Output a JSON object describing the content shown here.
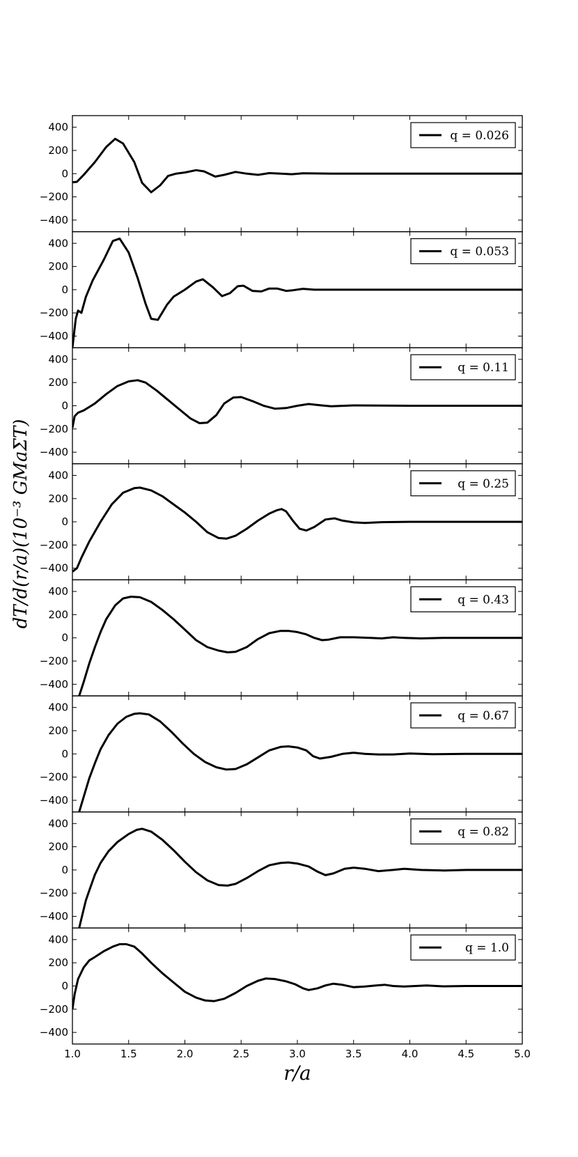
{
  "figure": {
    "xlabel": "r/a",
    "ylabel": "dT/d(r/a)(10⁻³ GMaΣT)"
  },
  "chart_data": {
    "type": "line",
    "xlim": [
      1.0,
      5.0
    ],
    "ylim": [
      -500,
      500
    ],
    "xticks": [
      "1.0",
      "1.5",
      "2.0",
      "2.5",
      "3.0",
      "3.5",
      "4.0",
      "4.5",
      "5.0"
    ],
    "yticks": [
      "400",
      "200",
      "0",
      "−200",
      "−400"
    ],
    "grid": false,
    "legend_position": "top-right",
    "series": [
      {
        "name": "q = 0.026",
        "points": [
          [
            1.0,
            -75
          ],
          [
            1.04,
            -70
          ],
          [
            1.1,
            -10
          ],
          [
            1.2,
            100
          ],
          [
            1.3,
            230
          ],
          [
            1.38,
            300
          ],
          [
            1.45,
            260
          ],
          [
            1.55,
            100
          ],
          [
            1.62,
            -80
          ],
          [
            1.7,
            -160
          ],
          [
            1.78,
            -100
          ],
          [
            1.85,
            -20
          ],
          [
            1.92,
            0
          ],
          [
            2.0,
            10
          ],
          [
            2.1,
            30
          ],
          [
            2.17,
            20
          ],
          [
            2.27,
            -25
          ],
          [
            2.35,
            -10
          ],
          [
            2.45,
            15
          ],
          [
            2.55,
            0
          ],
          [
            2.65,
            -10
          ],
          [
            2.75,
            5
          ],
          [
            2.85,
            0
          ],
          [
            2.95,
            -5
          ],
          [
            3.05,
            3
          ],
          [
            3.3,
            0
          ],
          [
            5.0,
            0
          ]
        ]
      },
      {
        "name": "q = 0.053",
        "points": [
          [
            1.0,
            -500
          ],
          [
            1.03,
            -250
          ],
          [
            1.05,
            -180
          ],
          [
            1.08,
            -200
          ],
          [
            1.12,
            -60
          ],
          [
            1.18,
            80
          ],
          [
            1.28,
            260
          ],
          [
            1.36,
            420
          ],
          [
            1.42,
            440
          ],
          [
            1.5,
            320
          ],
          [
            1.58,
            100
          ],
          [
            1.65,
            -120
          ],
          [
            1.7,
            -250
          ],
          [
            1.76,
            -260
          ],
          [
            1.84,
            -130
          ],
          [
            1.9,
            -60
          ],
          [
            2.0,
            0
          ],
          [
            2.1,
            70
          ],
          [
            2.16,
            90
          ],
          [
            2.25,
            20
          ],
          [
            2.33,
            -55
          ],
          [
            2.4,
            -30
          ],
          [
            2.47,
            30
          ],
          [
            2.52,
            35
          ],
          [
            2.6,
            -10
          ],
          [
            2.68,
            -15
          ],
          [
            2.75,
            10
          ],
          [
            2.82,
            10
          ],
          [
            2.9,
            -10
          ],
          [
            2.96,
            -5
          ],
          [
            3.05,
            8
          ],
          [
            3.15,
            0
          ],
          [
            5.0,
            0
          ]
        ]
      },
      {
        "name": "q = 0.11",
        "points": [
          [
            1.0,
            -190
          ],
          [
            1.02,
            -90
          ],
          [
            1.05,
            -60
          ],
          [
            1.1,
            -40
          ],
          [
            1.2,
            20
          ],
          [
            1.3,
            100
          ],
          [
            1.4,
            170
          ],
          [
            1.5,
            210
          ],
          [
            1.58,
            220
          ],
          [
            1.65,
            200
          ],
          [
            1.75,
            130
          ],
          [
            1.85,
            50
          ],
          [
            1.95,
            -30
          ],
          [
            2.05,
            -110
          ],
          [
            2.13,
            -150
          ],
          [
            2.2,
            -145
          ],
          [
            2.28,
            -80
          ],
          [
            2.35,
            20
          ],
          [
            2.43,
            70
          ],
          [
            2.5,
            75
          ],
          [
            2.6,
            40
          ],
          [
            2.7,
            0
          ],
          [
            2.8,
            -25
          ],
          [
            2.9,
            -20
          ],
          [
            3.0,
            0
          ],
          [
            3.1,
            15
          ],
          [
            3.2,
            5
          ],
          [
            3.3,
            -5
          ],
          [
            3.5,
            3
          ],
          [
            4.0,
            0
          ],
          [
            5.0,
            0
          ]
        ]
      },
      {
        "name": "q = 0.25",
        "points": [
          [
            1.0,
            -430
          ],
          [
            1.04,
            -400
          ],
          [
            1.08,
            -310
          ],
          [
            1.15,
            -170
          ],
          [
            1.25,
            0
          ],
          [
            1.35,
            150
          ],
          [
            1.45,
            250
          ],
          [
            1.55,
            290
          ],
          [
            1.6,
            295
          ],
          [
            1.7,
            270
          ],
          [
            1.8,
            220
          ],
          [
            1.9,
            150
          ],
          [
            2.0,
            80
          ],
          [
            2.1,
            0
          ],
          [
            2.2,
            -90
          ],
          [
            2.3,
            -140
          ],
          [
            2.37,
            -145
          ],
          [
            2.45,
            -120
          ],
          [
            2.55,
            -60
          ],
          [
            2.65,
            10
          ],
          [
            2.75,
            70
          ],
          [
            2.82,
            100
          ],
          [
            2.86,
            110
          ],
          [
            2.9,
            90
          ],
          [
            2.96,
            10
          ],
          [
            3.02,
            -60
          ],
          [
            3.08,
            -75
          ],
          [
            3.15,
            -45
          ],
          [
            3.25,
            20
          ],
          [
            3.33,
            30
          ],
          [
            3.4,
            10
          ],
          [
            3.5,
            -5
          ],
          [
            3.6,
            -10
          ],
          [
            3.75,
            -3
          ],
          [
            4.0,
            0
          ],
          [
            5.0,
            0
          ]
        ]
      },
      {
        "name": "q = 0.43",
        "points": [
          [
            1.06,
            -500
          ],
          [
            1.1,
            -380
          ],
          [
            1.15,
            -220
          ],
          [
            1.2,
            -80
          ],
          [
            1.25,
            50
          ],
          [
            1.3,
            160
          ],
          [
            1.38,
            280
          ],
          [
            1.45,
            340
          ],
          [
            1.52,
            355
          ],
          [
            1.6,
            350
          ],
          [
            1.7,
            310
          ],
          [
            1.8,
            240
          ],
          [
            1.9,
            160
          ],
          [
            2.0,
            70
          ],
          [
            2.1,
            -20
          ],
          [
            2.2,
            -80
          ],
          [
            2.3,
            -110
          ],
          [
            2.38,
            -125
          ],
          [
            2.45,
            -120
          ],
          [
            2.55,
            -80
          ],
          [
            2.65,
            -10
          ],
          [
            2.75,
            40
          ],
          [
            2.85,
            60
          ],
          [
            2.92,
            60
          ],
          [
            3.0,
            50
          ],
          [
            3.08,
            30
          ],
          [
            3.15,
            0
          ],
          [
            3.22,
            -20
          ],
          [
            3.28,
            -15
          ],
          [
            3.38,
            5
          ],
          [
            3.5,
            5
          ],
          [
            3.65,
            0
          ],
          [
            3.75,
            -5
          ],
          [
            3.85,
            5
          ],
          [
            3.95,
            0
          ],
          [
            4.1,
            -5
          ],
          [
            4.3,
            0
          ],
          [
            5.0,
            0
          ]
        ]
      },
      {
        "name": "q = 0.67",
        "points": [
          [
            1.06,
            -500
          ],
          [
            1.1,
            -370
          ],
          [
            1.15,
            -210
          ],
          [
            1.2,
            -80
          ],
          [
            1.25,
            40
          ],
          [
            1.32,
            160
          ],
          [
            1.4,
            260
          ],
          [
            1.48,
            320
          ],
          [
            1.55,
            345
          ],
          [
            1.6,
            350
          ],
          [
            1.68,
            340
          ],
          [
            1.78,
            280
          ],
          [
            1.88,
            190
          ],
          [
            1.98,
            90
          ],
          [
            2.08,
            0
          ],
          [
            2.18,
            -70
          ],
          [
            2.28,
            -115
          ],
          [
            2.37,
            -135
          ],
          [
            2.45,
            -130
          ],
          [
            2.55,
            -90
          ],
          [
            2.65,
            -30
          ],
          [
            2.75,
            30
          ],
          [
            2.85,
            60
          ],
          [
            2.92,
            65
          ],
          [
            3.0,
            55
          ],
          [
            3.08,
            30
          ],
          [
            3.14,
            -20
          ],
          [
            3.2,
            -40
          ],
          [
            3.3,
            -25
          ],
          [
            3.4,
            0
          ],
          [
            3.5,
            10
          ],
          [
            3.6,
            0
          ],
          [
            3.72,
            -5
          ],
          [
            3.85,
            -5
          ],
          [
            4.0,
            3
          ],
          [
            4.2,
            -3
          ],
          [
            4.5,
            0
          ],
          [
            5.0,
            0
          ]
        ]
      },
      {
        "name": "q = 0.82",
        "points": [
          [
            1.06,
            -500
          ],
          [
            1.08,
            -420
          ],
          [
            1.12,
            -260
          ],
          [
            1.16,
            -150
          ],
          [
            1.2,
            -40
          ],
          [
            1.25,
            60
          ],
          [
            1.32,
            160
          ],
          [
            1.4,
            240
          ],
          [
            1.5,
            310
          ],
          [
            1.57,
            345
          ],
          [
            1.62,
            355
          ],
          [
            1.7,
            330
          ],
          [
            1.8,
            260
          ],
          [
            1.9,
            170
          ],
          [
            2.0,
            70
          ],
          [
            2.1,
            -20
          ],
          [
            2.2,
            -90
          ],
          [
            2.3,
            -130
          ],
          [
            2.38,
            -135
          ],
          [
            2.45,
            -120
          ],
          [
            2.55,
            -70
          ],
          [
            2.65,
            -10
          ],
          [
            2.75,
            40
          ],
          [
            2.85,
            60
          ],
          [
            2.92,
            65
          ],
          [
            3.0,
            55
          ],
          [
            3.1,
            30
          ],
          [
            3.18,
            -15
          ],
          [
            3.25,
            -45
          ],
          [
            3.32,
            -30
          ],
          [
            3.42,
            10
          ],
          [
            3.5,
            20
          ],
          [
            3.6,
            10
          ],
          [
            3.72,
            -10
          ],
          [
            3.85,
            0
          ],
          [
            3.95,
            10
          ],
          [
            4.1,
            0
          ],
          [
            4.3,
            -5
          ],
          [
            4.5,
            0
          ],
          [
            5.0,
            0
          ]
        ]
      },
      {
        "name": "q = 1.0",
        "points": [
          [
            1.0,
            -200
          ],
          [
            1.02,
            -70
          ],
          [
            1.05,
            60
          ],
          [
            1.1,
            160
          ],
          [
            1.15,
            220
          ],
          [
            1.2,
            250
          ],
          [
            1.28,
            300
          ],
          [
            1.36,
            340
          ],
          [
            1.42,
            360
          ],
          [
            1.48,
            360
          ],
          [
            1.55,
            340
          ],
          [
            1.62,
            280
          ],
          [
            1.7,
            200
          ],
          [
            1.8,
            110
          ],
          [
            1.9,
            30
          ],
          [
            2.0,
            -50
          ],
          [
            2.1,
            -100
          ],
          [
            2.18,
            -125
          ],
          [
            2.26,
            -130
          ],
          [
            2.35,
            -110
          ],
          [
            2.45,
            -60
          ],
          [
            2.55,
            0
          ],
          [
            2.65,
            45
          ],
          [
            2.72,
            65
          ],
          [
            2.8,
            60
          ],
          [
            2.9,
            40
          ],
          [
            2.98,
            15
          ],
          [
            3.05,
            -20
          ],
          [
            3.1,
            -35
          ],
          [
            3.18,
            -20
          ],
          [
            3.25,
            5
          ],
          [
            3.32,
            20
          ],
          [
            3.4,
            10
          ],
          [
            3.5,
            -10
          ],
          [
            3.6,
            -5
          ],
          [
            3.7,
            5
          ],
          [
            3.78,
            10
          ],
          [
            3.85,
            0
          ],
          [
            3.95,
            -5
          ],
          [
            4.05,
            0
          ],
          [
            4.15,
            5
          ],
          [
            4.3,
            -3
          ],
          [
            4.5,
            0
          ],
          [
            5.0,
            0
          ]
        ]
      }
    ]
  }
}
